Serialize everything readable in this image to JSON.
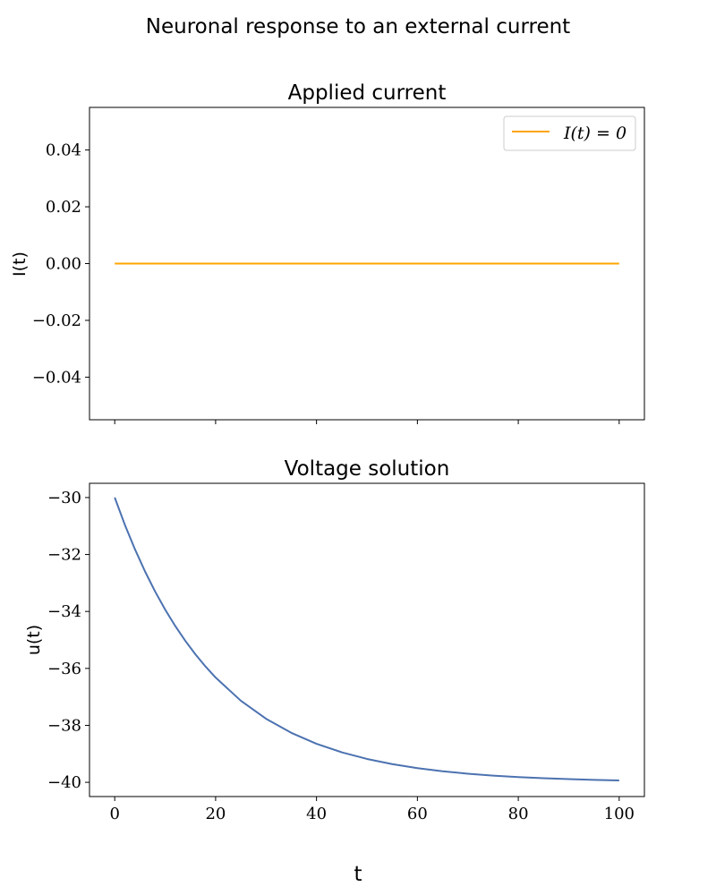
{
  "figure": {
    "title": "Neuronal response to an external current",
    "shared_xlabel": "t"
  },
  "chart_data": [
    {
      "type": "line",
      "title": "Applied current",
      "xlabel": "",
      "ylabel": "I(t)",
      "xlim": [
        -5,
        105
      ],
      "ylim": [
        -0.055,
        0.055
      ],
      "xticks": [
        0,
        20,
        40,
        60,
        80,
        100
      ],
      "xtick_labels_shown": false,
      "yticks": [
        -0.04,
        -0.02,
        0.0,
        0.02,
        0.04
      ],
      "ytick_labels": [
        "−0.04",
        "−0.02",
        "0.00",
        "0.02",
        "0.04"
      ],
      "grid": false,
      "legend": {
        "position": "top-right",
        "entries": [
          "I(t) = 0"
        ]
      },
      "series": [
        {
          "name": "I(t) = 0",
          "color": "#ffa500",
          "x": [
            0,
            100
          ],
          "y": [
            0,
            0
          ]
        }
      ]
    },
    {
      "type": "line",
      "title": "Voltage solution",
      "xlabel": "t",
      "ylabel": "u(t)",
      "xlim": [
        -5,
        105
      ],
      "ylim": [
        -40.5,
        -29.5
      ],
      "xticks": [
        0,
        20,
        40,
        60,
        80,
        100
      ],
      "xtick_labels": [
        "0",
        "20",
        "40",
        "60",
        "80",
        "100"
      ],
      "yticks": [
        -40,
        -38,
        -36,
        -34,
        -32,
        -30
      ],
      "ytick_labels": [
        "−40",
        "−38",
        "−36",
        "−34",
        "−32",
        "−30"
      ],
      "grid": false,
      "series": [
        {
          "color": "#4c72b0",
          "x": [
            0,
            2,
            4,
            6,
            8,
            10,
            12,
            14,
            16,
            18,
            20,
            25,
            30,
            35,
            40,
            45,
            50,
            55,
            60,
            65,
            70,
            75,
            80,
            85,
            90,
            95,
            100
          ],
          "y": [
            -30.0,
            -30.952,
            -31.813,
            -32.592,
            -33.297,
            -33.935,
            -34.512,
            -35.034,
            -35.507,
            -35.934,
            -36.321,
            -37.135,
            -37.769,
            -38.262,
            -38.647,
            -38.946,
            -39.179,
            -39.361,
            -39.502,
            -39.612,
            -39.698,
            -39.765,
            -39.817,
            -39.857,
            -39.889,
            -39.913,
            -39.933
          ]
        }
      ]
    }
  ]
}
